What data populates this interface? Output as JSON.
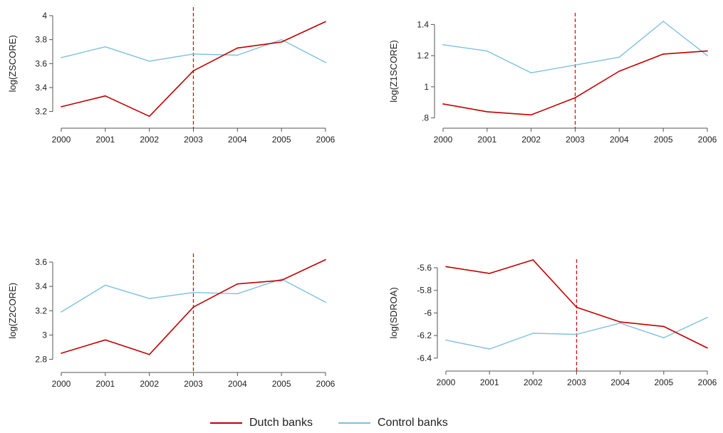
{
  "colors": {
    "dutch": "#c00000",
    "control": "#7ec0e0",
    "axis": "#555555",
    "treatment": "#d01010"
  },
  "legend": {
    "dutch_label": "Dutch banks",
    "control_label": "Control banks"
  },
  "chart_data": [
    {
      "type": "line",
      "ylabel": "log(ZSCORE)",
      "x": [
        2000,
        2001,
        2002,
        2003,
        2004,
        2005,
        2006
      ],
      "xticks": [
        "2000",
        "2001",
        "2002",
        "2003",
        "2004",
        "2005",
        "2006"
      ],
      "yticks": [
        3.2,
        3.4,
        3.6,
        3.8,
        4
      ],
      "ytick_labels": [
        "3.2",
        "3.4",
        "3.6",
        "3.8",
        "4"
      ],
      "ylim": [
        3.15,
        4.0
      ],
      "treatment_year": 2003,
      "series": [
        {
          "name": "Dutch banks",
          "values": [
            3.24,
            3.33,
            3.16,
            3.54,
            3.73,
            3.78,
            3.95
          ]
        },
        {
          "name": "Control banks",
          "values": [
            3.65,
            3.74,
            3.62,
            3.68,
            3.67,
            3.8,
            3.61
          ]
        }
      ]
    },
    {
      "type": "line",
      "ylabel": "log(Z1SCORE)",
      "x": [
        2000,
        2001,
        2002,
        2003,
        2004,
        2005,
        2006
      ],
      "xticks": [
        "2000",
        "2001",
        "2002",
        "2003",
        "2004",
        "2005",
        "2006"
      ],
      "yticks": [
        0.8,
        1.0,
        1.2,
        1.4
      ],
      "ytick_labels": [
        ".8",
        "1",
        "1.2",
        "1.4"
      ],
      "ylim": [
        0.78,
        1.42
      ],
      "treatment_year": 2003,
      "series": [
        {
          "name": "Dutch banks",
          "values": [
            0.89,
            0.84,
            0.82,
            0.93,
            1.1,
            1.21,
            1.23
          ]
        },
        {
          "name": "Control banks",
          "values": [
            1.27,
            1.23,
            1.09,
            1.14,
            1.19,
            1.42,
            1.2
          ]
        }
      ]
    },
    {
      "type": "line",
      "ylabel": "log(Z2CORE)",
      "x": [
        2000,
        2001,
        2002,
        2003,
        2004,
        2005,
        2006
      ],
      "xticks": [
        "2000",
        "2001",
        "2002",
        "2003",
        "2004",
        "2005",
        "2006"
      ],
      "yticks": [
        2.8,
        3.0,
        3.2,
        3.4,
        3.6
      ],
      "ytick_labels": [
        "2.8",
        "3",
        "3.2",
        "3.4",
        "3.6"
      ],
      "ylim": [
        2.78,
        3.6
      ],
      "treatment_year": 2003,
      "series": [
        {
          "name": "Dutch banks",
          "values": [
            2.85,
            2.96,
            2.84,
            3.23,
            3.42,
            3.45,
            3.62
          ]
        },
        {
          "name": "Control banks",
          "values": [
            3.19,
            3.41,
            3.3,
            3.35,
            3.34,
            3.46,
            3.27
          ]
        }
      ]
    },
    {
      "type": "line",
      "ylabel": "log(SDROA)",
      "x": [
        2000,
        2001,
        2002,
        2003,
        2004,
        2005,
        2006
      ],
      "xticks": [
        "2000",
        "2001",
        "2002",
        "2003",
        "2004",
        "2005",
        "2006"
      ],
      "yticks": [
        -6.4,
        -6.2,
        -6.0,
        -5.8,
        -5.6
      ],
      "ytick_labels": [
        "-6.4",
        "-6.2",
        "-6",
        "-5.8",
        "-5.6"
      ],
      "ylim": [
        -6.42,
        -5.6
      ],
      "treatment_year": 2003,
      "series": [
        {
          "name": "Dutch banks",
          "values": [
            -5.59,
            -5.65,
            -5.53,
            -5.95,
            -6.08,
            -6.12,
            -6.31
          ]
        },
        {
          "name": "Control banks",
          "values": [
            -6.24,
            -6.32,
            -6.18,
            -6.19,
            -6.09,
            -6.22,
            -6.04
          ]
        }
      ]
    }
  ]
}
